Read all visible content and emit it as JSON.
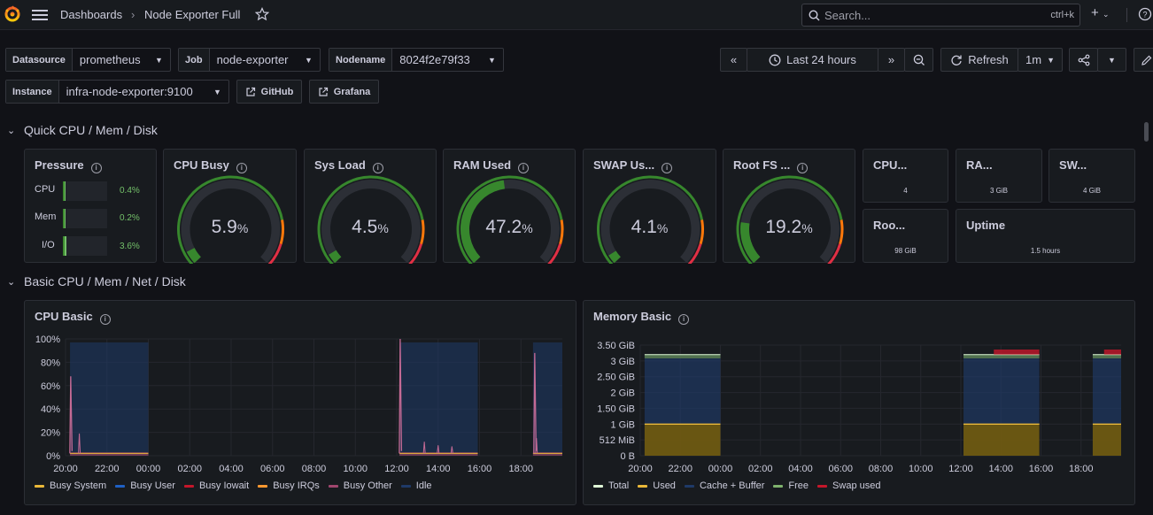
{
  "topbar": {
    "breadcrumb_root": "Dashboards",
    "breadcrumb_sep": "›",
    "breadcrumb_current": "Node Exporter Full",
    "search_placeholder": "Search...",
    "search_shortcut": "ctrl+k",
    "new_label": "+"
  },
  "variables": {
    "datasource": {
      "label": "Datasource",
      "value": "prometheus"
    },
    "job": {
      "label": "Job",
      "value": "node-exporter"
    },
    "nodename": {
      "label": "Nodename",
      "value": "8024f2e79f33"
    },
    "instance": {
      "label": "Instance",
      "value": "infra-node-exporter:9100"
    },
    "links": {
      "github": "GitHub",
      "grafana": "Grafana"
    }
  },
  "time_controls": {
    "range": "Last 24 hours",
    "refresh": "Refresh",
    "interval": "1m"
  },
  "rows": {
    "quick": "Quick CPU / Mem / Disk",
    "basic": "Basic CPU / Mem / Net / Disk"
  },
  "pressure": {
    "title": "Pressure",
    "items": [
      {
        "label": "CPU",
        "value": "0.4%",
        "fraction": 0.004
      },
      {
        "label": "Mem",
        "value": "0.2%",
        "fraction": 0.002
      },
      {
        "label": "I/O",
        "value": "3.6%",
        "fraction": 0.036
      }
    ]
  },
  "gauges": [
    {
      "title": "CPU Busy",
      "value": "5.9",
      "unit": "%",
      "fraction": 0.059
    },
    {
      "title": "Sys Load",
      "value": "4.5",
      "unit": "%",
      "fraction": 0.045
    },
    {
      "title": "RAM Used",
      "value": "47.2",
      "unit": "%",
      "fraction": 0.472
    },
    {
      "title": "SWAP Us...",
      "value": "4.1",
      "unit": "%",
      "fraction": 0.041
    },
    {
      "title": "Root FS ...",
      "value": "19.2",
      "unit": "%",
      "fraction": 0.192
    }
  ],
  "stats": {
    "cpu_cores": {
      "title": "CPU...",
      "value": "4"
    },
    "ram_total": {
      "title": "RA...",
      "value": "3 GiB"
    },
    "swap_total": {
      "title": "SW...",
      "value": "4 GiB"
    },
    "rootfs_total": {
      "title": "Roo...",
      "value": "98 GiB"
    },
    "uptime": {
      "title": "Uptime",
      "value": "1.5 hours"
    }
  },
  "cpu_basic": {
    "title": "CPU Basic",
    "legend": [
      {
        "name": "Busy System",
        "color": "#eab839"
      },
      {
        "name": "Busy User",
        "color": "#1f60c4"
      },
      {
        "name": "Busy Iowait",
        "color": "#c4162a"
      },
      {
        "name": "Busy IRQs",
        "color": "#ff9830"
      },
      {
        "name": "Busy Other",
        "color": "#a0466e"
      },
      {
        "name": "Idle",
        "color": "#1f3a68"
      }
    ]
  },
  "memory_basic": {
    "title": "Memory Basic",
    "legend": [
      {
        "name": "Total",
        "color": "#e0f9d7"
      },
      {
        "name": "Used",
        "color": "#eab839"
      },
      {
        "name": "Cache + Buffer",
        "color": "#1f3a68"
      },
      {
        "name": "Free",
        "color": "#7eb26d"
      },
      {
        "name": "Swap used",
        "color": "#c4162a"
      }
    ]
  },
  "chart_data": [
    {
      "type": "area",
      "title": "CPU Basic",
      "x": [
        "20:00",
        "22:00",
        "00:00",
        "02:00",
        "04:00",
        "06:00",
        "08:00",
        "10:00",
        "12:00",
        "14:00",
        "16:00",
        "18:00"
      ],
      "yticks": [
        "0%",
        "20%",
        "40%",
        "60%",
        "80%",
        "100%"
      ],
      "ylim": [
        0,
        100
      ],
      "data_windows": [
        [
          "20:13",
          "00:00"
        ],
        [
          "12:08",
          "15:55"
        ],
        [
          "18:35",
          "20:00"
        ]
      ],
      "series": [
        {
          "name": "Idle",
          "values_pct": "≈96-98% within data windows"
        },
        {
          "name": "Busy Other",
          "spikes": [
            {
              "time": "20:15",
              "value": 68
            },
            {
              "time": "12:10",
              "value": 100
            },
            {
              "time": "18:40",
              "value": 88
            }
          ]
        },
        {
          "name": "Busy System",
          "values_pct": "≈1-3%"
        },
        {
          "name": "Busy User",
          "values_pct": "≈1-3%"
        }
      ]
    },
    {
      "type": "area",
      "title": "Memory Basic",
      "x": [
        "20:00",
        "22:00",
        "00:00",
        "02:00",
        "04:00",
        "06:00",
        "08:00",
        "10:00",
        "12:00",
        "14:00",
        "16:00",
        "18:00"
      ],
      "yticks": [
        "0 B",
        "512 MiB",
        "1 GiB",
        "1.50 GiB",
        "2 GiB",
        "2.50 GiB",
        "3 GiB",
        "3.50 GiB"
      ],
      "ylim_gib": [
        0,
        3.6
      ],
      "data_windows": [
        [
          "20:13",
          "00:00"
        ],
        [
          "12:08",
          "15:55"
        ],
        [
          "18:35",
          "20:00"
        ]
      ],
      "series": [
        {
          "name": "Total",
          "value_gib": 3.2
        },
        {
          "name": "Used",
          "value_gib": 1.0
        },
        {
          "name": "Cache + Buffer",
          "value_gib": 2.1
        },
        {
          "name": "Free",
          "value_gib": 0.1
        },
        {
          "name": "Swap used",
          "value_gib": 0.16
        }
      ]
    }
  ]
}
